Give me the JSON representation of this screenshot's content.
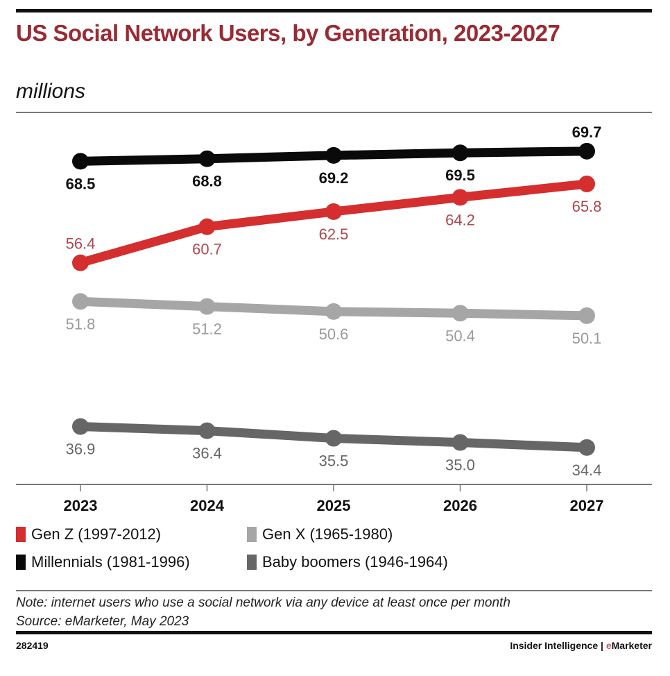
{
  "header": {
    "title": "US Social Network Users, by Generation, 2023-2027",
    "subtitle": "millions"
  },
  "chart_data": {
    "type": "line",
    "title": "US Social Network Users, by Generation, 2023-2027",
    "subtitle": "millions",
    "xlabel": "",
    "ylabel": "",
    "categories": [
      "2023",
      "2024",
      "2025",
      "2026",
      "2027"
    ],
    "ylim": [
      30,
      72
    ],
    "grid": false,
    "legend_position": "bottom-left",
    "series": [
      {
        "name": "Gen Z (1997-2012)",
        "color": "#d42e2e",
        "label_color": "#b0474f",
        "values": [
          56.4,
          60.7,
          62.5,
          64.2,
          65.8
        ]
      },
      {
        "name": "Millennials (1981-1996)",
        "color": "#0a0a0a",
        "label_color": "#111111",
        "values": [
          68.5,
          68.8,
          69.2,
          69.5,
          69.7
        ]
      },
      {
        "name": "Gen X (1965-1980)",
        "color": "#a6a6a6",
        "label_color": "#9a9a9a",
        "values": [
          51.8,
          51.2,
          50.6,
          50.4,
          50.1
        ]
      },
      {
        "name": "Baby boomers (1946-1964)",
        "color": "#666666",
        "label_color": "#666666",
        "values": [
          36.9,
          36.4,
          35.5,
          35.0,
          34.4
        ]
      }
    ]
  },
  "legend": {
    "items": [
      {
        "label": "Gen Z (1997-2012)",
        "color": "#d42e2e"
      },
      {
        "label": "Gen X (1965-1980)",
        "color": "#a6a6a6"
      },
      {
        "label": "Millennials (1981-1996)",
        "color": "#0a0a0a"
      },
      {
        "label": "Baby boomers (1946-1964)",
        "color": "#666666"
      }
    ]
  },
  "footer": {
    "note": "Note: internet users who use a social network via any device at least once per month",
    "source": "Source: eMarketer, May 2023",
    "chart_id": "282419",
    "brand_prefix": "Insider Intelligence | ",
    "brand_e": "e",
    "brand_rest": "Marketer"
  }
}
